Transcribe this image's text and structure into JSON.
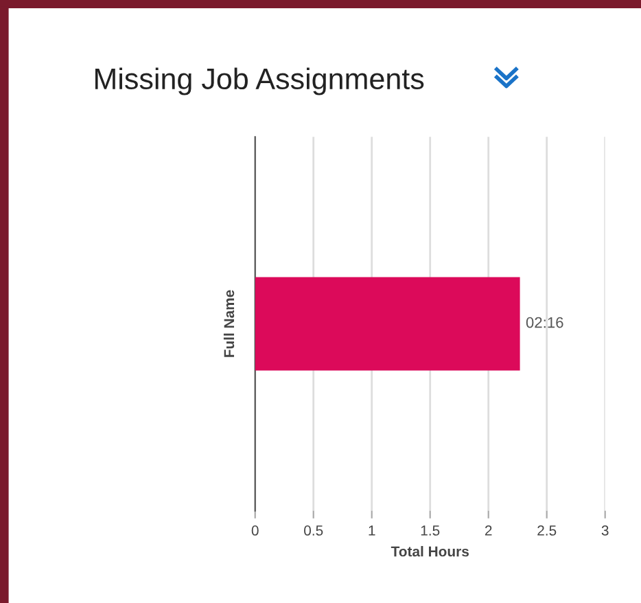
{
  "chart_data": {
    "type": "bar",
    "orientation": "horizontal",
    "title": "Missing Job Assignments",
    "xlabel": "Total Hours",
    "ylabel": "Full Name",
    "categories": [
      null
    ],
    "series": [
      {
        "color": "#dc0a5a",
        "values": [
          2.27
        ],
        "value_labels": [
          "02:16"
        ]
      }
    ],
    "xlim": [
      0,
      3
    ],
    "xticks": [
      0,
      0.5,
      1,
      1.5,
      2,
      2.5,
      3
    ],
    "grid": "x",
    "legend": false
  }
}
